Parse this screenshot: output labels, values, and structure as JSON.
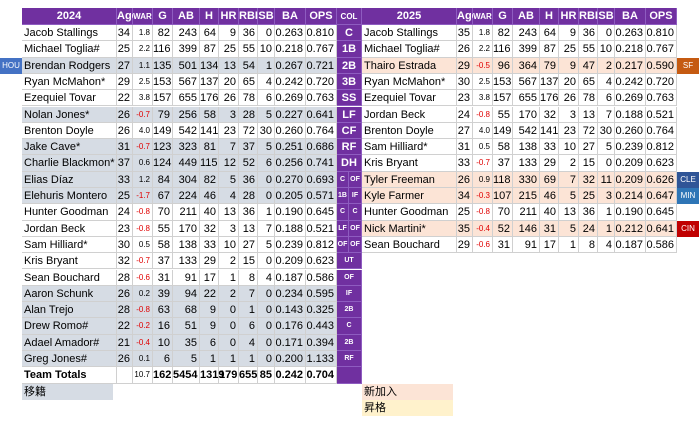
{
  "col_header": "COL",
  "headers": [
    "Age",
    "WAR",
    "G",
    "AB",
    "H",
    "HR",
    "RBI",
    "SB",
    "BA",
    "OPS"
  ],
  "header_color": "#7030a0",
  "left": {
    "year": "2024",
    "rows": [
      {
        "name": "Jacob Stallings",
        "stats": [
          "34",
          "1.8",
          "82",
          "243",
          "64",
          "9",
          "36",
          "0",
          "0.263",
          "0.810"
        ],
        "pos": "C"
      },
      {
        "name": "Michael Toglia#",
        "stats": [
          "25",
          "2.2",
          "116",
          "399",
          "87",
          "25",
          "55",
          "10",
          "0.218",
          "0.767"
        ],
        "pos": "1B"
      },
      {
        "name": "Brendan Rodgers",
        "stats": [
          "27",
          "1.1",
          "135",
          "501",
          "134",
          "13",
          "54",
          "1",
          "0.267",
          "0.721"
        ],
        "pos": "2B",
        "team": "HOU",
        "team_color": "#4472c4",
        "color": "#d6dce4"
      },
      {
        "name": "Ryan McMahon*",
        "stats": [
          "29",
          "2.5",
          "153",
          "567",
          "137",
          "20",
          "65",
          "4",
          "0.242",
          "0.720"
        ],
        "pos": "3B"
      },
      {
        "name": "Ezequiel Tovar",
        "stats": [
          "22",
          "3.8",
          "157",
          "655",
          "176",
          "26",
          "78",
          "6",
          "0.269",
          "0.763"
        ],
        "pos": "SS"
      },
      {
        "name": "Nolan Jones*",
        "stats": [
          "26",
          "-0.7",
          "79",
          "256",
          "58",
          "3",
          "28",
          "5",
          "0.227",
          "0.641"
        ],
        "pos": "LF",
        "color": "#d6dce4"
      },
      {
        "name": "Brenton Doyle",
        "stats": [
          "26",
          "4.0",
          "149",
          "542",
          "141",
          "23",
          "72",
          "30",
          "0.260",
          "0.764"
        ],
        "pos": "CF"
      },
      {
        "name": "Jake Cave*",
        "stats": [
          "31",
          "-0.7",
          "123",
          "323",
          "81",
          "7",
          "37",
          "5",
          "0.251",
          "0.686"
        ],
        "pos": "RF",
        "color": "#d6dce4"
      },
      {
        "name": "Charlie Blackmon*",
        "stats": [
          "37",
          "0.6",
          "124",
          "449",
          "115",
          "12",
          "52",
          "6",
          "0.256",
          "0.741"
        ],
        "pos": "DH",
        "color": "#d6dce4"
      },
      {
        "name": "Elias Díaz",
        "stats": [
          "33",
          "1.2",
          "84",
          "304",
          "82",
          "5",
          "36",
          "0",
          "0.270",
          "0.693"
        ],
        "pos": "C",
        "color": "#d6dce4"
      },
      {
        "name": "Elehuris Montero",
        "stats": [
          "25",
          "-1.7",
          "67",
          "224",
          "46",
          "4",
          "28",
          "0",
          "0.205",
          "0.571"
        ],
        "pos": "1B",
        "color": "#d6dce4"
      },
      {
        "name": "Hunter Goodman",
        "stats": [
          "24",
          "-0.8",
          "70",
          "211",
          "40",
          "13",
          "36",
          "1",
          "0.190",
          "0.645"
        ],
        "pos": "C"
      },
      {
        "name": "Jordan Beck",
        "stats": [
          "23",
          "-0.8",
          "55",
          "170",
          "32",
          "3",
          "13",
          "7",
          "0.188",
          "0.521"
        ],
        "pos": "LF"
      },
      {
        "name": "Sam Hilliard*",
        "stats": [
          "30",
          "0.5",
          "58",
          "138",
          "33",
          "10",
          "27",
          "5",
          "0.239",
          "0.812"
        ],
        "pos": "OF"
      },
      {
        "name": "Kris Bryant",
        "stats": [
          "32",
          "-0.7",
          "37",
          "133",
          "29",
          "2",
          "15",
          "0",
          "0.209",
          "0.623"
        ],
        "pos": "UT"
      },
      {
        "name": "Sean Bouchard",
        "stats": [
          "28",
          "-0.6",
          "31",
          "91",
          "17",
          "1",
          "8",
          "4",
          "0.187",
          "0.586"
        ],
        "pos": "OF"
      },
      {
        "name": "Aaron Schunk",
        "stats": [
          "26",
          "0.2",
          "39",
          "94",
          "22",
          "2",
          "7",
          "0",
          "0.234",
          "0.595"
        ],
        "pos": "IF",
        "color": "#d6dce4"
      },
      {
        "name": "Alan Trejo",
        "stats": [
          "28",
          "-0.8",
          "63",
          "68",
          "9",
          "0",
          "1",
          "0",
          "0.143",
          "0.325"
        ],
        "pos": "2B",
        "color": "#d6dce4"
      },
      {
        "name": "Drew Romo#",
        "stats": [
          "22",
          "-0.2",
          "16",
          "51",
          "9",
          "0",
          "6",
          "0",
          "0.176",
          "0.443"
        ],
        "pos": "C",
        "color": "#d6dce4"
      },
      {
        "name": "Adael Amador#",
        "stats": [
          "21",
          "-0.4",
          "10",
          "35",
          "6",
          "0",
          "4",
          "0",
          "0.171",
          "0.394"
        ],
        "pos": "2B",
        "color": "#d6dce4"
      },
      {
        "name": "Greg Jones#",
        "stats": [
          "26",
          "0.1",
          "6",
          "5",
          "1",
          "1",
          "1",
          "0",
          "0.200",
          "1.133"
        ],
        "pos": "RF",
        "color": "#d6dce4"
      }
    ],
    "totals": {
      "label": "Team Totals",
      "stats": [
        null,
        "10.7",
        "162",
        "5454",
        "1319",
        "179",
        "655",
        "85",
        "0.242",
        "0.704"
      ]
    }
  },
  "right": {
    "year": "2025",
    "rows": [
      {
        "name": "Jacob Stallings",
        "stats": [
          "35",
          "1.8",
          "82",
          "243",
          "64",
          "9",
          "36",
          "0",
          "0.263",
          "0.810"
        ]
      },
      {
        "name": "Michael Toglia#",
        "stats": [
          "26",
          "2.2",
          "116",
          "399",
          "87",
          "25",
          "55",
          "10",
          "0.218",
          "0.767"
        ]
      },
      {
        "name": "Thairo Estrada",
        "stats": [
          "29",
          "-0.5",
          "96",
          "364",
          "79",
          "9",
          "47",
          "2",
          "0.217",
          "0.590"
        ],
        "team": "SF",
        "team_color": "#c55a11",
        "color": "#fce4d6"
      },
      {
        "name": "Ryan McMahon*",
        "stats": [
          "30",
          "2.5",
          "153",
          "567",
          "137",
          "20",
          "65",
          "4",
          "0.242",
          "0.720"
        ]
      },
      {
        "name": "Ezequiel Tovar",
        "stats": [
          "23",
          "3.8",
          "157",
          "655",
          "176",
          "26",
          "78",
          "6",
          "0.269",
          "0.763"
        ]
      },
      {
        "name": "Jordan Beck",
        "stats": [
          "24",
          "-0.8",
          "55",
          "170",
          "32",
          "3",
          "13",
          "7",
          "0.188",
          "0.521"
        ]
      },
      {
        "name": "Brenton Doyle",
        "stats": [
          "27",
          "4.0",
          "149",
          "542",
          "141",
          "23",
          "72",
          "30",
          "0.260",
          "0.764"
        ]
      },
      {
        "name": "Sam Hilliard*",
        "stats": [
          "31",
          "0.5",
          "58",
          "138",
          "33",
          "10",
          "27",
          "5",
          "0.239",
          "0.812"
        ]
      },
      {
        "name": "Kris Bryant",
        "stats": [
          "33",
          "-0.7",
          "37",
          "133",
          "29",
          "2",
          "15",
          "0",
          "0.209",
          "0.623"
        ]
      },
      {
        "name": "Tyler Freeman",
        "stats": [
          "26",
          "0.9",
          "118",
          "330",
          "69",
          "7",
          "32",
          "11",
          "0.209",
          "0.626"
        ],
        "pos": "OF",
        "team": "CLE",
        "team_color": "#2f5597",
        "color": "#fce4d6"
      },
      {
        "name": "Kyle Farmer",
        "stats": [
          "34",
          "-0.3",
          "107",
          "215",
          "46",
          "5",
          "25",
          "3",
          "0.214",
          "0.647"
        ],
        "pos": "IF",
        "team": "MIN",
        "team_color": "#2e75b6",
        "color": "#fce4d6"
      },
      {
        "name": "Hunter Goodman",
        "stats": [
          "25",
          "-0.8",
          "70",
          "211",
          "40",
          "13",
          "36",
          "1",
          "0.190",
          "0.645"
        ],
        "pos": "C"
      },
      {
        "name": "Nick Martini*",
        "stats": [
          "35",
          "-0.4",
          "52",
          "146",
          "31",
          "5",
          "24",
          "1",
          "0.212",
          "0.641"
        ],
        "pos": "OF",
        "team": "CIN",
        "team_color": "#c00000",
        "color": "#fce4d6"
      },
      {
        "name": "Sean Bouchard",
        "stats": [
          "29",
          "-0.6",
          "31",
          "91",
          "17",
          "1",
          "8",
          "4",
          "0.187",
          "0.586"
        ],
        "pos": "OF"
      }
    ]
  },
  "legend": [
    {
      "label": "移籍",
      "color": "#d6dce4"
    },
    {
      "label": "新加入",
      "color": "#fce4d6"
    },
    {
      "label": "昇格",
      "color": "#fff2cc"
    }
  ]
}
